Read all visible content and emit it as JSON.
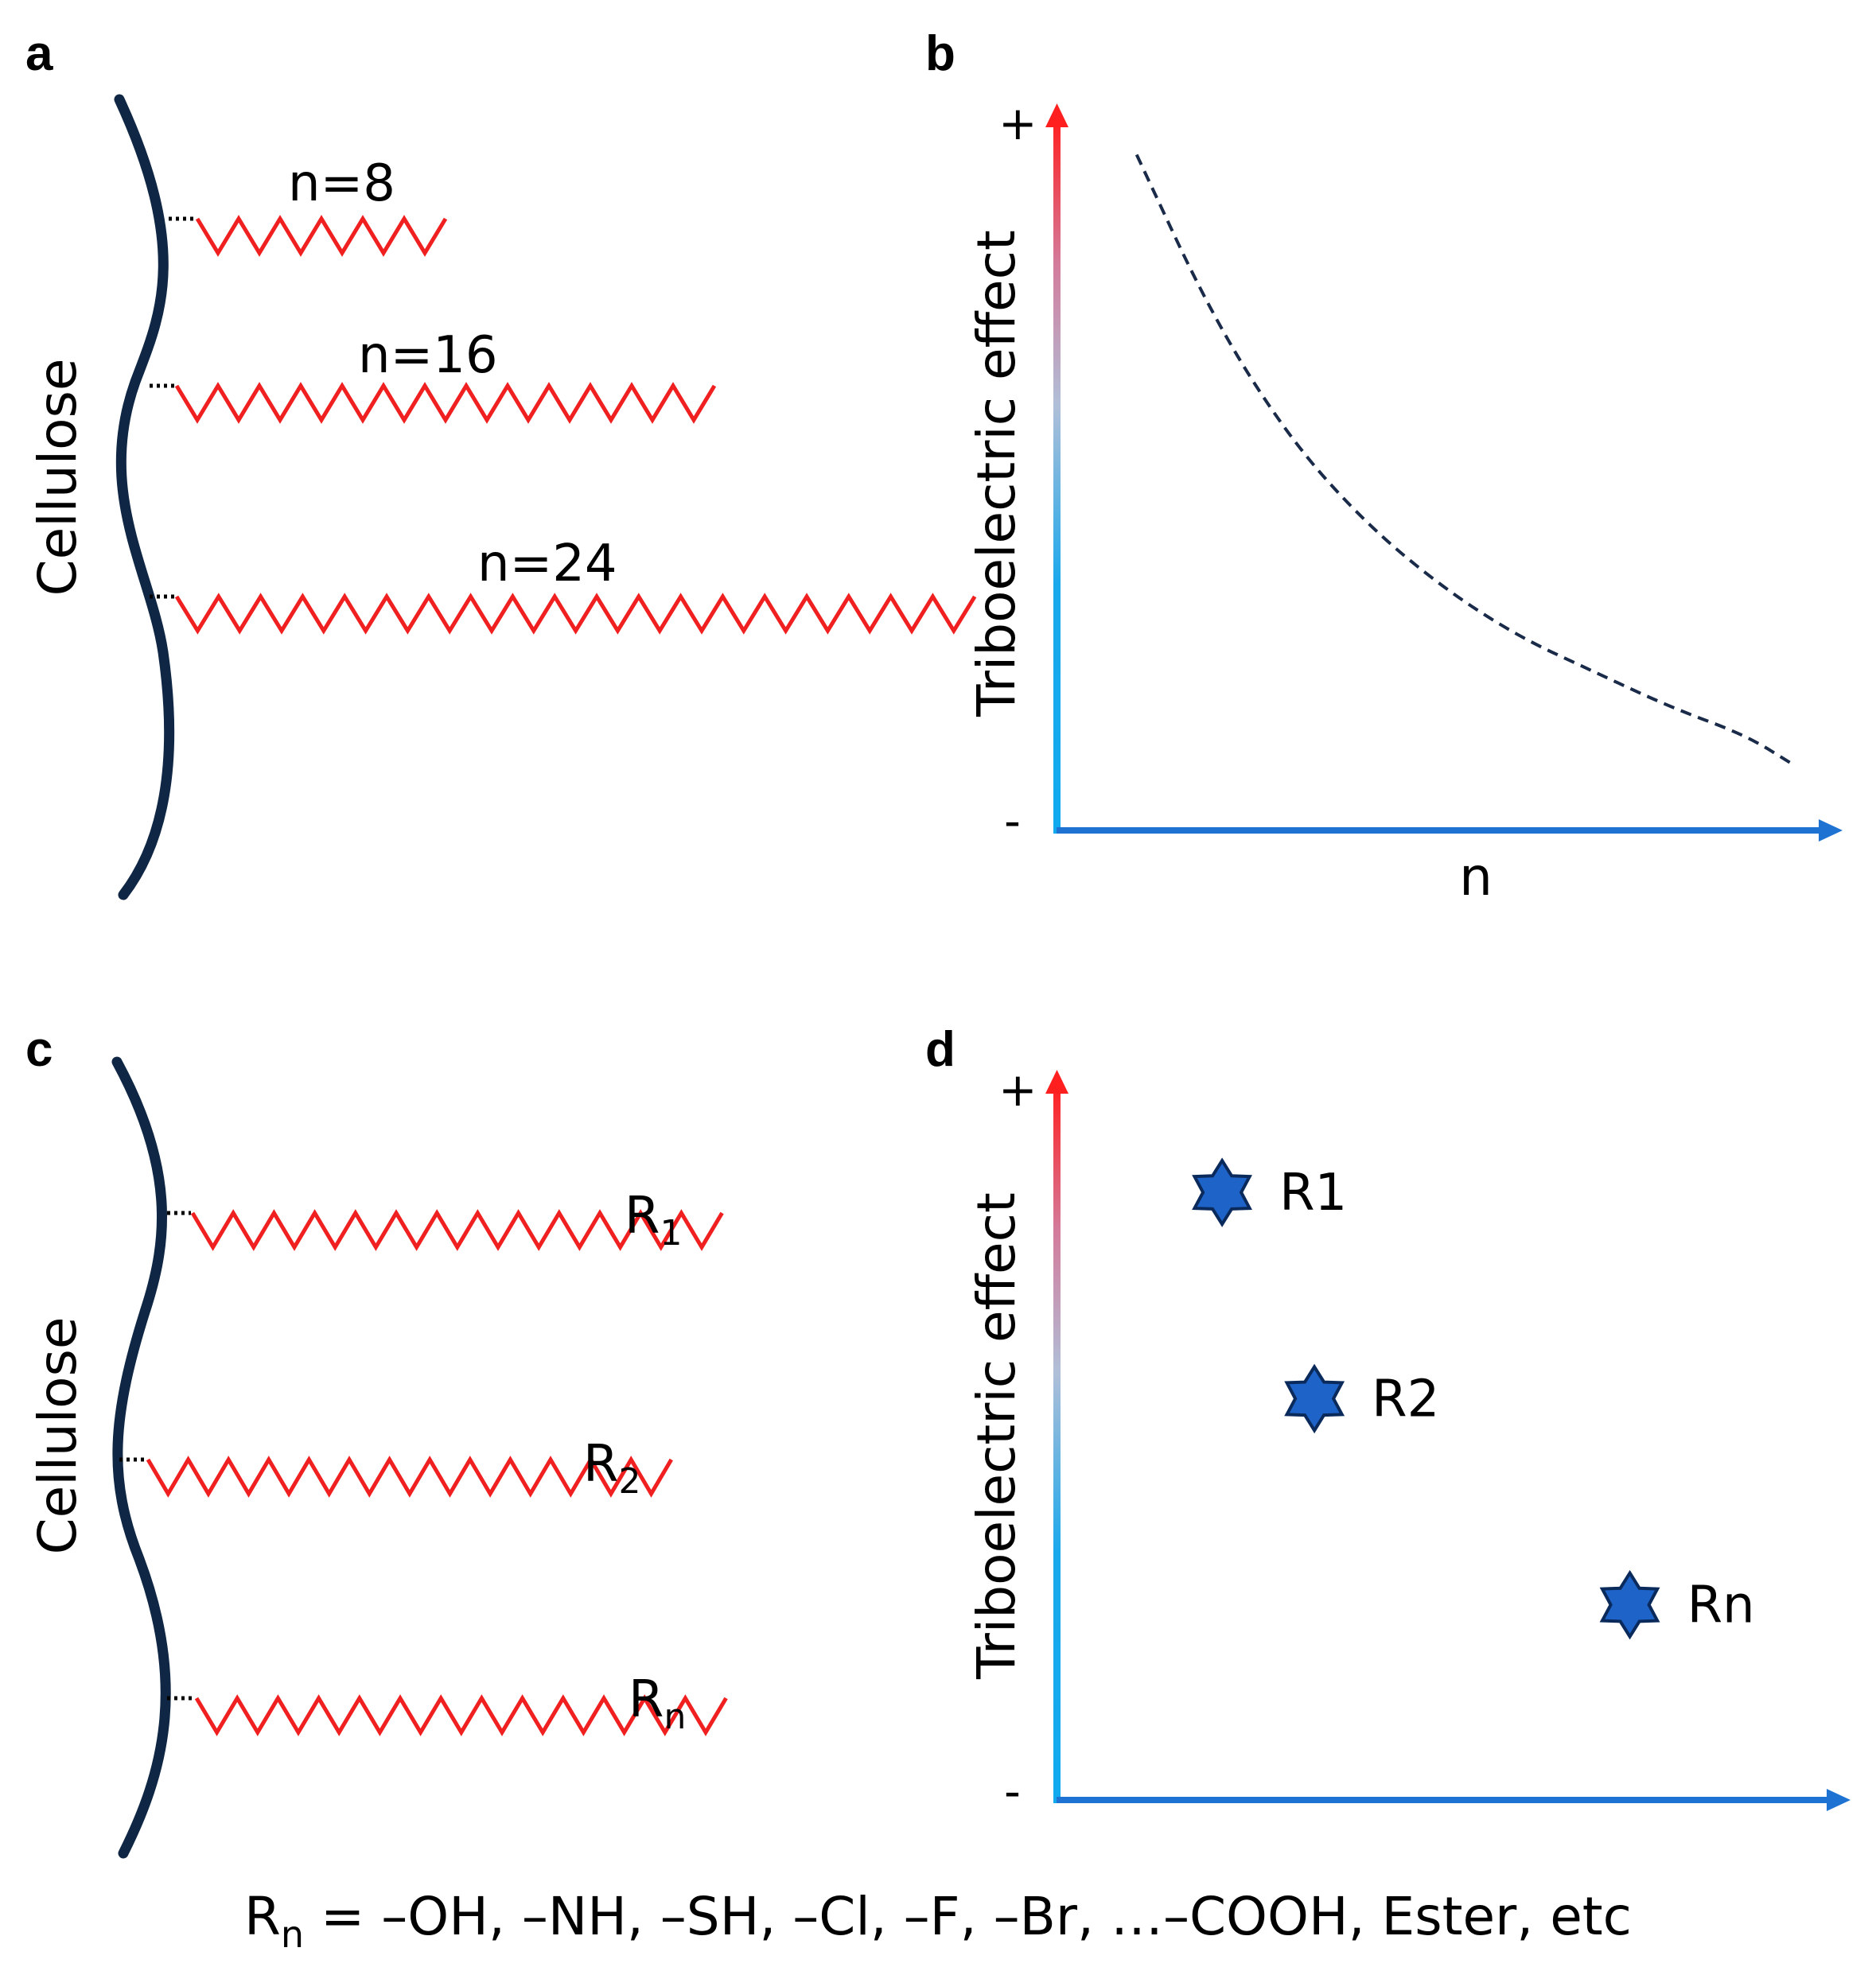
{
  "panels": {
    "a": {
      "label": "a",
      "backbone_label": "Cellulose",
      "chains": [
        {
          "label": "n=8"
        },
        {
          "label": "n=16"
        },
        {
          "label": "n=24"
        }
      ]
    },
    "b": {
      "label": "b",
      "y_label": "Triboelectric effect",
      "x_label": "n",
      "y_plus": "+",
      "y_minus": "-",
      "curve": "decreasing",
      "chart_data": {
        "type": "line",
        "title": "",
        "xlabel": "n",
        "ylabel": "Triboelectric effect",
        "note": "qualitative dashed curve; triboelectric effect decreases as n increases",
        "x": [
          0.1,
          0.2,
          0.3,
          0.4,
          0.5,
          0.6,
          0.7,
          0.8,
          0.9,
          0.96
        ],
        "y": [
          0.95,
          0.72,
          0.55,
          0.43,
          0.34,
          0.27,
          0.22,
          0.17,
          0.13,
          0.09
        ]
      }
    },
    "c": {
      "label": "c",
      "backbone_label": "Cellulose",
      "chains": [
        {
          "label": "R",
          "sub": "1"
        },
        {
          "label": "R",
          "sub": "2"
        },
        {
          "label": "R",
          "sub": "n"
        }
      ]
    },
    "d": {
      "label": "d",
      "y_label": "Triboelectric effect",
      "y_plus": "+",
      "y_minus": "-",
      "chart_data": {
        "type": "scatter",
        "title": "",
        "xlabel": "",
        "ylabel": "Triboelectric effect",
        "points": [
          {
            "name": "R1",
            "x": 0.21,
            "y": 0.85
          },
          {
            "name": "R2",
            "x": 0.33,
            "y": 0.56
          },
          {
            "name": "Rn",
            "x": 0.74,
            "y": 0.27
          }
        ]
      }
    }
  },
  "footnote": {
    "prefix": "R",
    "sub": "n",
    "text": " = –OH, –NH, –SH, –Cl, –F, –Br, …–COOH, Ester, etc"
  },
  "colors": {
    "backbone": "#0f2744",
    "chain": "#f02020",
    "axis_top": "#ff1f1f",
    "axis_bottom": "#11aaee",
    "axis_x": "#1e73d2",
    "star_fill": "#1e63c8",
    "star_stroke": "#0b2a5c",
    "curve": "#1a2b4a"
  }
}
